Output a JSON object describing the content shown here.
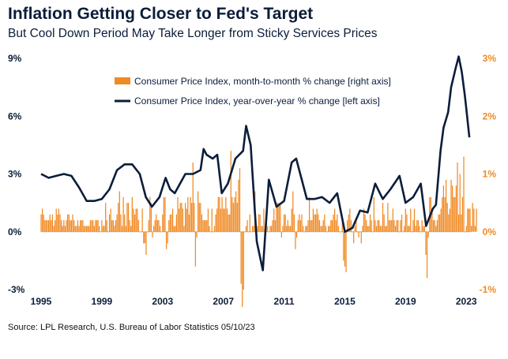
{
  "header": {
    "title": "Inflation Getting Closer to Fed's Target",
    "subtitle": "But Cool Down Period May Take Longer from Sticky Services Prices"
  },
  "footer": {
    "source": "Source: LPL Research, U.S. Bureau of Labor Statistics 05/10/23"
  },
  "colors": {
    "yoy": "#0b1d3a",
    "mom": "#f08a24"
  },
  "chart_data": {
    "type": "bar+line",
    "title": "Inflation Getting Closer to Fed's Target",
    "subtitle": "But Cool Down Period May Take Longer from Sticky Services Prices",
    "x_range": [
      1995,
      2023.3
    ],
    "x_ticks": [
      "1995",
      "1999",
      "2003",
      "2007",
      "2011",
      "2015",
      "2019",
      "2023"
    ],
    "x_tick_values": [
      1995,
      1999,
      2003,
      2007,
      2011,
      2015,
      2019,
      2023
    ],
    "left_axis": {
      "range": [
        -3,
        9
      ],
      "ticks": [
        "-3%",
        "0%",
        "3%",
        "6%",
        "9%"
      ],
      "tick_values": [
        -3,
        0,
        3,
        6,
        9
      ]
    },
    "right_axis": {
      "range": [
        -1,
        3
      ],
      "ticks": [
        "-1%",
        "0%",
        "1%",
        "2%",
        "3%"
      ],
      "tick_values": [
        -1,
        0,
        1,
        2,
        3
      ]
    },
    "legend": [
      {
        "label": "Consumer Price Index, month-to-month % change [right axis]",
        "type": "bar"
      },
      {
        "label": "Consumer Price Index, year-over-year % change [left axis]",
        "type": "line"
      }
    ],
    "series": [
      {
        "name": "Consumer Price Index, year-over-year % change [left axis]",
        "axis": "left",
        "type": "line",
        "x": [
          1995.0,
          1995.5,
          1996.0,
          1996.5,
          1997.0,
          1997.5,
          1998.0,
          1998.5,
          1999.0,
          1999.5,
          2000.0,
          2000.5,
          2001.0,
          2001.5,
          2001.9,
          2002.3,
          2002.8,
          2003.2,
          2003.5,
          2003.8,
          2004.5,
          2005.0,
          2005.5,
          2005.7,
          2005.9,
          2006.3,
          2006.6,
          2006.9,
          2007.3,
          2007.8,
          2008.3,
          2008.5,
          2008.8,
          2009.2,
          2009.6,
          2010.0,
          2010.5,
          2011.0,
          2011.5,
          2011.8,
          2012.5,
          2013.0,
          2013.5,
          2014.0,
          2014.5,
          2015.0,
          2015.5,
          2016.0,
          2016.5,
          2017.0,
          2017.5,
          2018.0,
          2018.6,
          2019.0,
          2019.5,
          2020.0,
          2020.35,
          2020.8,
          2021.0,
          2021.3,
          2021.5,
          2021.8,
          2022.0,
          2022.3,
          2022.5,
          2022.7,
          2022.9,
          2023.0,
          2023.2
        ],
        "values": [
          3.0,
          2.8,
          2.9,
          3.0,
          2.9,
          2.3,
          1.6,
          1.6,
          1.7,
          2.2,
          3.2,
          3.5,
          3.5,
          3.0,
          1.8,
          1.3,
          1.8,
          2.8,
          2.2,
          2.0,
          3.0,
          3.0,
          3.2,
          4.3,
          4.0,
          3.8,
          4.0,
          2.0,
          2.5,
          3.8,
          4.2,
          5.5,
          4.5,
          -0.5,
          -2.0,
          2.7,
          1.3,
          1.6,
          3.6,
          3.8,
          1.7,
          1.7,
          1.8,
          1.5,
          2.0,
          0.0,
          0.2,
          1.1,
          1.0,
          2.5,
          1.7,
          2.2,
          2.9,
          1.5,
          1.8,
          2.5,
          0.3,
          1.2,
          1.4,
          4.2,
          5.4,
          6.2,
          7.5,
          8.5,
          9.1,
          8.3,
          7.1,
          6.4,
          4.9
        ]
      },
      {
        "name": "Consumer Price Index, month-to-month % change [right axis]",
        "axis": "right",
        "type": "bar",
        "frequency": "monthly",
        "start": 1995.0,
        "values": [
          0.3,
          0.4,
          0.3,
          0.2,
          0.2,
          0.2,
          0.2,
          0.3,
          0.2,
          0.3,
          0.1,
          0.2,
          0.4,
          0.3,
          0.4,
          0.3,
          0.2,
          0.1,
          0.2,
          0.1,
          0.2,
          0.3,
          0.3,
          0.2,
          0.2,
          0.3,
          0.2,
          0.1,
          0.1,
          0.2,
          0.1,
          0.2,
          0.2,
          0.2,
          0.1,
          0.1,
          0.1,
          0.1,
          0.1,
          0.2,
          0.2,
          0.2,
          0.1,
          0.2,
          0.2,
          0.2,
          0.1,
          0.0,
          0.2,
          0.1,
          0.1,
          0.5,
          0.2,
          0.0,
          0.3,
          0.4,
          0.2,
          0.2,
          0.1,
          0.2,
          0.3,
          0.5,
          0.7,
          0.3,
          0.1,
          0.6,
          0.3,
          0.1,
          0.5,
          0.5,
          0.2,
          0.1,
          0.6,
          0.4,
          0.3,
          0.4,
          0.4,
          0.2,
          0.0,
          0.0,
          0.4,
          -0.2,
          -0.2,
          -0.4,
          0.0,
          0.2,
          0.6,
          0.5,
          -0.1,
          0.1,
          0.2,
          0.3,
          0.2,
          0.2,
          0.1,
          0.0,
          0.3,
          0.6,
          0.6,
          -0.3,
          -0.2,
          0.2,
          0.3,
          0.3,
          0.4,
          0.1,
          0.1,
          0.3,
          0.6,
          0.4,
          0.5,
          0.5,
          0.4,
          0.1,
          0.5,
          0.4,
          0.6,
          0.3,
          0.6,
          0.5,
          1.2,
          0.5,
          -0.6,
          -0.1,
          0.7,
          0.5,
          0.5,
          0.3,
          0.2,
          0.2,
          0.2,
          0.2,
          0.4,
          0.1,
          0.0,
          0.4,
          0.0,
          0.1,
          0.3,
          0.4,
          0.6,
          0.6,
          0.4,
          0.6,
          0.4,
          0.4,
          0.6,
          0.4,
          0.3,
          0.3,
          1.4,
          0.6,
          0.5,
          0.6,
          0.7,
          0.5,
          0.9,
          1.1,
          -0.9,
          -1.3,
          -1.0,
          0.0,
          0.1,
          0.2,
          0.0,
          0.3,
          0.0,
          0.1,
          0.1,
          0.7,
          0.1,
          0.1,
          0.3,
          0.3,
          0.1,
          0.1,
          0.4,
          0.0,
          0.2,
          0.1,
          0.0,
          0.1,
          0.1,
          0.2,
          0.4,
          0.2,
          0.5,
          0.5,
          0.5,
          0.5,
          -0.1,
          0.1,
          0.3,
          0.3,
          0.1,
          0.2,
          0.1,
          0.1,
          0.4,
          0.7,
          0.3,
          -0.3,
          -0.1,
          0.2,
          0.3,
          0.2,
          0.3,
          0.1,
          0.0,
          0.1,
          0.1,
          0.2,
          0.6,
          0.2,
          0.2,
          0.4,
          0.3,
          0.3,
          0.4,
          0.3,
          0.2,
          0.1,
          0.1,
          0.2,
          0.3,
          0.1,
          0.0,
          0.1,
          0.1,
          0.2,
          0.2,
          0.3,
          0.4,
          0.2,
          0.3,
          0.1,
          0.0,
          0.0,
          0.2,
          -0.5,
          -0.6,
          -0.7,
          0.2,
          0.3,
          0.4,
          0.2,
          0.0,
          -0.2,
          0.1,
          0.2,
          0.0,
          -0.1,
          0.0,
          -0.2,
          0.1,
          0.4,
          0.3,
          0.2,
          0.1,
          0.1,
          0.3,
          0.2,
          0.0,
          0.6,
          0.2,
          0.1,
          0.2,
          0.2,
          0.1,
          0.1,
          0.5,
          0.3,
          0.1,
          0.1,
          0.5,
          0.2,
          0.2,
          0.2,
          0.4,
          0.2,
          0.1,
          0.2,
          0.2,
          0.0,
          0.2,
          0.3,
          0.0,
          0.1,
          0.4,
          0.3,
          0.1,
          0.1,
          0.4,
          0.0,
          0.2,
          0.4,
          0.1,
          0.2,
          0.2,
          0.1,
          0.0,
          0.2,
          0.1,
          0.1,
          -0.4,
          -0.8,
          -0.1,
          0.6,
          0.6,
          0.4,
          0.2,
          0.2,
          0.1,
          0.2,
          0.3,
          0.3,
          0.4,
          0.6,
          0.8,
          0.6,
          0.9,
          0.5,
          0.3,
          0.4,
          0.9,
          0.8,
          0.6,
          0.6,
          0.8,
          1.2,
          0.3,
          1.0,
          0.3,
          0.6,
          1.3,
          0.0,
          0.1,
          0.4,
          0.4,
          0.4,
          0.1,
          0.5,
          0.4,
          0.1,
          0.4
        ]
      }
    ]
  }
}
